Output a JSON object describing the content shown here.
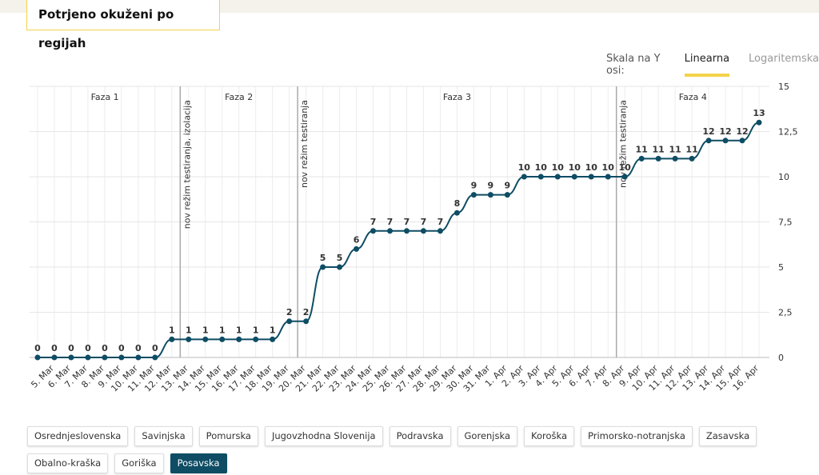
{
  "header": {
    "title": "Potrjeno okuženi po regijah"
  },
  "scale_toggle": {
    "label": "Skala na Y osi:",
    "options": [
      "Linearna",
      "Logaritemska"
    ],
    "active": "Linearna"
  },
  "chart_data": {
    "type": "line",
    "categories": [
      null,
      "5. Mar",
      "6. Mar",
      "7. Mar",
      "8. Mar",
      "9. Mar",
      "10. Mar",
      "11. Mar",
      "12. Mar",
      "13. Mar",
      "14. Mar",
      "15. Mar",
      "16. Mar",
      "17. Mar",
      "18. Mar",
      "19. Mar",
      "20. Mar",
      "21. Mar",
      "22. Mar",
      "23. Mar",
      "24. Mar",
      "25. Mar",
      "26. Mar",
      "27. Mar",
      "28. Mar",
      "29. Mar",
      "30. Mar",
      "31. Mar",
      "1. Apr",
      "2. Apr",
      "3. Apr",
      "4. Apr",
      "5. Apr",
      "6. Apr",
      "7. Apr",
      "8. Apr",
      "9. Apr",
      "10. Apr",
      "11. Apr",
      "12. Apr",
      "13. Apr",
      "14. Apr",
      "15. Apr",
      "16. Apr"
    ],
    "series": [
      {
        "name": "Posavska",
        "color": "#0e4d64",
        "values": [
          0,
          0,
          0,
          0,
          0,
          0,
          0,
          0,
          1,
          1,
          1,
          1,
          1,
          1,
          1,
          2,
          2,
          5,
          5,
          6,
          7,
          7,
          7,
          7,
          7,
          8,
          9,
          9,
          9,
          10,
          10,
          10,
          10,
          10,
          10,
          10,
          11,
          11,
          11,
          11,
          12,
          12,
          12,
          13
        ]
      }
    ],
    "ylim": [
      0,
      15
    ],
    "yticks": [
      0,
      {
        "value": 2.5,
        "label": "2,5"
      },
      5,
      {
        "value": 7.5,
        "label": "7,5"
      },
      10,
      {
        "value": 12.5,
        "label": "12,5"
      },
      15
    ],
    "grid": true,
    "markers": [
      {
        "after": "12. Mar",
        "label": "nov režim testiranja, izolacija"
      },
      {
        "after": "19. Mar",
        "label": "nov režim testiranja"
      },
      {
        "after": "7. Apr",
        "label": "nov režim testiranja"
      }
    ],
    "phases": [
      "Faza 1",
      "Faza 2",
      "Faza 3",
      "Faza 4"
    ]
  },
  "regions": {
    "items": [
      "Osrednjeslovenska",
      "Savinjska",
      "Pomurska",
      "Jugovzhodna Slovenija",
      "Podravska",
      "Gorenjska",
      "Koroška",
      "Primorsko-notranjska",
      "Zasavska",
      "Obalno-kraška",
      "Goriška",
      "Posavska"
    ],
    "selected": "Posavska"
  }
}
